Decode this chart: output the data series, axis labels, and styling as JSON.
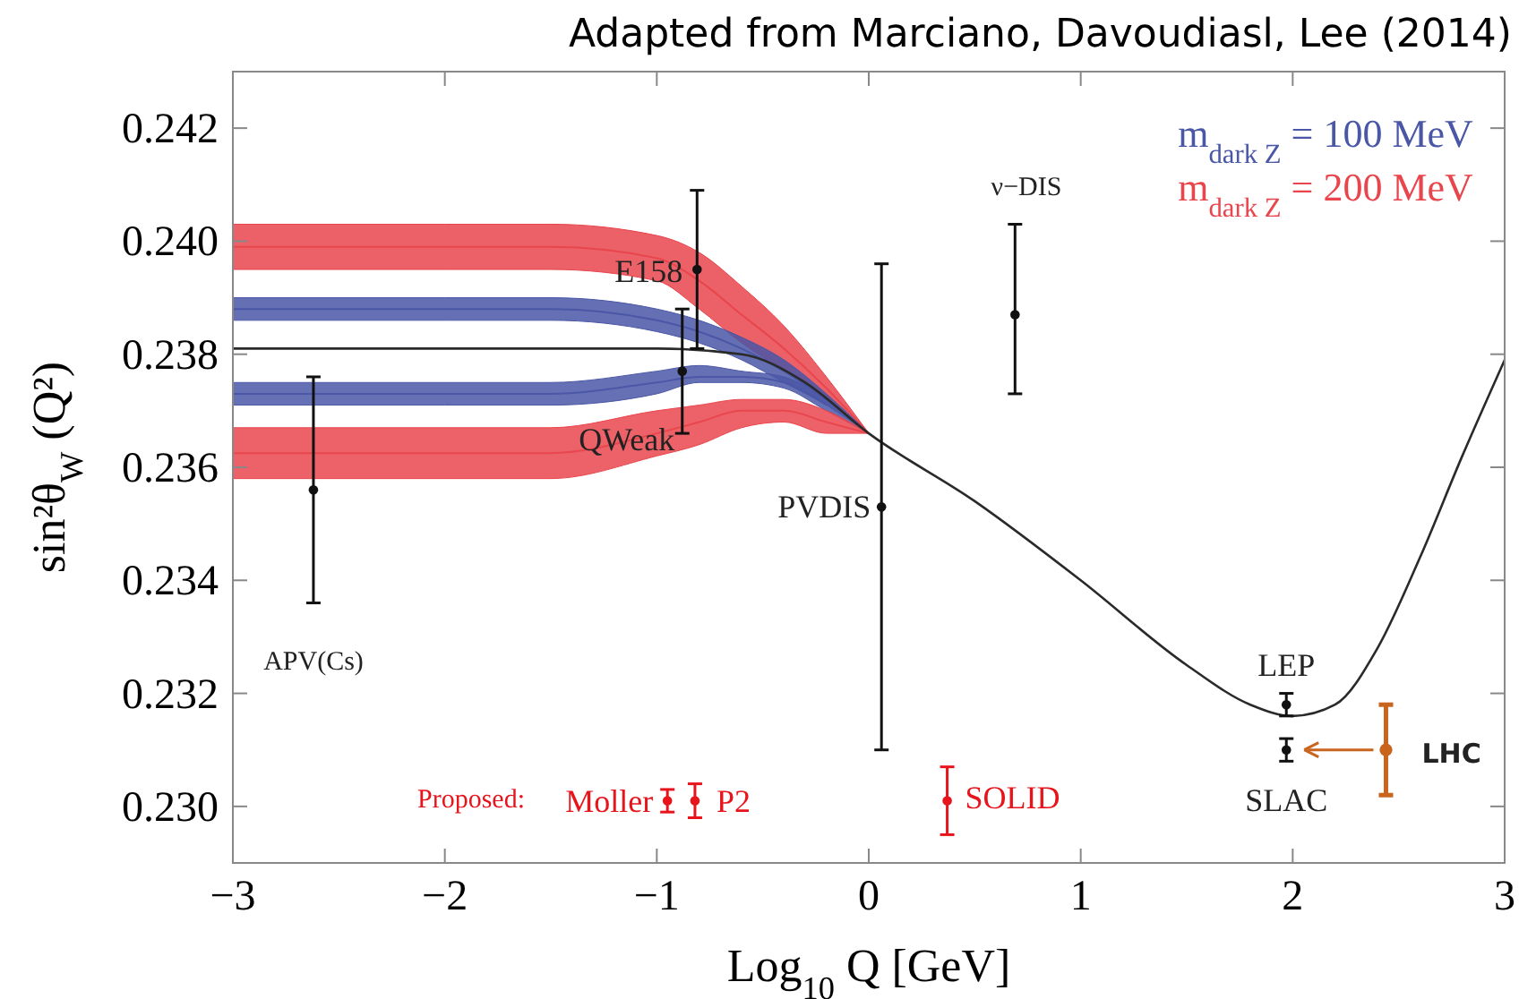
{
  "chart_data": {
    "type": "line",
    "title": "Adapted from Marciano, Davoudiasl, Lee (2014)",
    "xlabel": "Log$_{10}$ Q [GeV]",
    "ylabel": "sin²θ$_{W}$ (Q²)",
    "xlim": [
      -3,
      3
    ],
    "ylim": [
      0.229,
      0.243
    ],
    "xticks": [
      {
        "value": -3,
        "label": "−3"
      },
      {
        "value": -2,
        "label": "−2"
      },
      {
        "value": -1,
        "label": "−1"
      },
      0,
      1,
      2,
      3
    ],
    "yticks": [
      {
        "value": 0.23,
        "label": "0.230"
      },
      {
        "value": 0.232,
        "label": "0.232"
      },
      {
        "value": 0.234,
        "label": "0.234"
      },
      {
        "value": 0.236,
        "label": "0.236"
      },
      {
        "value": 0.238,
        "label": "0.238"
      },
      {
        "value": 0.24,
        "label": "0.240"
      },
      {
        "value": 0.242,
        "label": "0.242"
      }
    ],
    "grid": false,
    "legend": "top right",
    "line_style": "solid",
    "series": [
      {
        "marker": "none",
        "name": "m$_{dark Z}$ = 200 MeV",
        "color": "#e8454c",
        "x": [
          -3,
          -2,
          -1.5,
          -1,
          -0.8,
          -0.6,
          -0.4,
          -0.2,
          0
        ],
        "values": [
          0.2399,
          0.2399,
          0.2399,
          0.2397,
          0.2393,
          0.2387,
          0.2381,
          0.2374,
          0.2366
        ],
        "lower": [
          0.2395,
          0.2395,
          0.2395,
          0.2393,
          0.2388,
          0.2382,
          0.2377,
          0.2372,
          0.2366
        ],
        "upper": [
          0.2403,
          0.2403,
          0.2403,
          0.2401,
          0.2398,
          0.2392,
          0.2385,
          0.2376,
          0.2366
        ]
      },
      {
        "marker": "none",
        "name": "m$_{dark Z}$ = 100 MeV",
        "color": "#4a56a6",
        "x": [
          -3,
          -2,
          -1.5,
          -1,
          -0.8,
          -0.6,
          -0.4,
          -0.2,
          0
        ],
        "values": [
          0.2388,
          0.2388,
          0.2388,
          0.2386,
          0.2384,
          0.2381,
          0.2377,
          0.2372,
          null
        ],
        "lower": [
          0.2386,
          0.2386,
          0.2386,
          0.2384,
          0.2382,
          0.2379,
          0.2375,
          0.2371,
          0.2366
        ],
        "upper": [
          0.239,
          0.239,
          0.239,
          0.2388,
          0.2386,
          0.2383,
          0.2379,
          0.2373,
          0.2366
        ]
      },
      {
        "marker": "none",
        "color": "#4b57a7",
        "x": [
          -3,
          -2,
          -1.5,
          -1,
          -0.8,
          -0.6,
          -0.4,
          -0.2,
          0
        ],
        "values": [
          0.2373,
          0.2373,
          0.2373,
          0.2375,
          0.2376,
          0.2376,
          0.2375,
          0.2371,
          null
        ],
        "lower": [
          0.2371,
          0.2371,
          0.2371,
          0.2373,
          0.2375,
          0.2375,
          0.2374,
          0.237,
          0.2366
        ],
        "upper": [
          0.2375,
          0.2375,
          0.2375,
          0.2377,
          0.2378,
          0.2377,
          0.2376,
          0.2372,
          0.2366
        ]
      },
      {
        "marker": "none",
        "color": "#e9464d",
        "x": [
          -3,
          -2,
          -1.5,
          -1,
          -0.8,
          -0.6,
          -0.4,
          -0.2,
          0
        ],
        "values": [
          0.23625,
          0.23625,
          0.23625,
          0.2366,
          0.2368,
          0.237,
          0.237,
          0.2368,
          0.2366
        ],
        "lower": [
          0.2358,
          0.2358,
          0.2358,
          0.2362,
          0.2364,
          0.2367,
          0.2368,
          0.2366,
          0.2366
        ],
        "upper": [
          0.2367,
          0.2367,
          0.2367,
          0.237,
          0.2371,
          0.2372,
          0.2372,
          0.237,
          0.2366
        ]
      },
      {
        "marker": "none",
        "color": "#2a2a2a",
        "x": [
          -3,
          -2,
          -1,
          -0.6,
          -0.3,
          0,
          0.5,
          1,
          1.5,
          1.8,
          2,
          2.2,
          2.4,
          2.6,
          2.8,
          3
        ],
        "values": [
          0.2381,
          0.2381,
          0.2381,
          0.238,
          0.2375,
          0.2366,
          0.2354,
          0.234,
          0.2325,
          0.2318,
          0.2316,
          0.2318,
          0.2328,
          0.2344,
          0.2362,
          0.2379
        ]
      },
      {
        "type": "scatter",
        "marker": "circle",
        "color": "#111111",
        "x": [
          -2.62,
          -0.88,
          -0.81,
          0.06,
          0.69,
          1.97,
          1.97
        ],
        "values": [
          0.2356,
          0.2377,
          0.2395,
          0.2353,
          0.2387,
          0.2318,
          0.231
        ],
        "errors": [
          0.002,
          0.0011,
          0.0014,
          0.0043,
          [
            0.2373,
            0.2403
          ],
          0.0002,
          0.0002
        ]
      },
      {
        "type": "scatter",
        "marker": "circle",
        "color": "#e8141c",
        "x": [
          -0.95,
          -0.82,
          0.37
        ],
        "values": [
          0.2301,
          0.2301,
          0.2301
        ],
        "errors": [
          0.0002,
          0.0003,
          0.0006
        ]
      },
      {
        "type": "scatter",
        "marker": "circle",
        "color": "#c8641e",
        "x": [
          2.44
        ],
        "values": [
          0.231
        ],
        "errors": [
          0.0008
        ]
      }
    ],
    "annotations": [
      "APV(Cs)",
      {
        "text": "E158",
        "x": -0.81,
        "y": 0.2395
      },
      {
        "text": "QWeak",
        "x": -0.88,
        "y": 0.2377
      },
      {
        "text": "PVDIS",
        "x": 0.06,
        "y": 0.2353
      },
      "ν−DIS",
      {
        "text": "LEP",
        "x": 1.97,
        "y": 0.2318
      },
      {
        "text": "SLAC",
        "x": 1.97,
        "y": 0.231
      },
      {
        "text": "LHC",
        "x": 2.44,
        "y": 0.231
      },
      "Proposed:",
      {
        "text": "Moller",
        "x": -0.95,
        "y": 0.2301
      },
      {
        "text": "P2",
        "x": -0.82,
        "y": 0.2301
      },
      {
        "text": "SOLID",
        "x": 0.37,
        "y": 0.2301
      }
    ]
  }
}
